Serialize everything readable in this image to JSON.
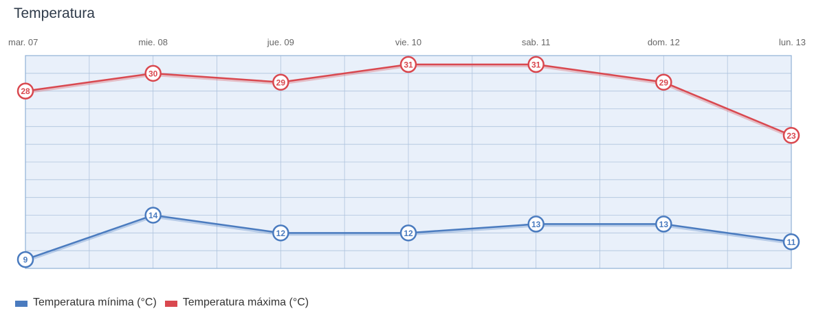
{
  "title": "Temperatura",
  "colors": {
    "min": "#4a7bbf",
    "max": "#d9484f",
    "plot_bg": "#e9f0fa",
    "grid": "#aec3dd"
  },
  "chart_data": {
    "type": "line",
    "title": "Temperatura",
    "categories": [
      "mar. 07",
      "mie. 08",
      "jue. 09",
      "vie. 10",
      "sab. 11",
      "dom. 12",
      "lun. 13"
    ],
    "series": [
      {
        "name": "Temperatura mínima (°C)",
        "values": [
          9,
          14,
          12,
          12,
          13,
          13,
          11
        ]
      },
      {
        "name": "Temperatura máxima (°C)",
        "values": [
          28,
          30,
          29,
          31,
          31,
          29,
          23
        ]
      }
    ],
    "ylim": [
      8,
      32
    ],
    "grid": true,
    "legend": "bottom-left",
    "xlabel": "",
    "ylabel": ""
  },
  "legend": {
    "min_label": "Temperatura mínima (°C)",
    "max_label": "Temperatura máxima (°C)"
  }
}
